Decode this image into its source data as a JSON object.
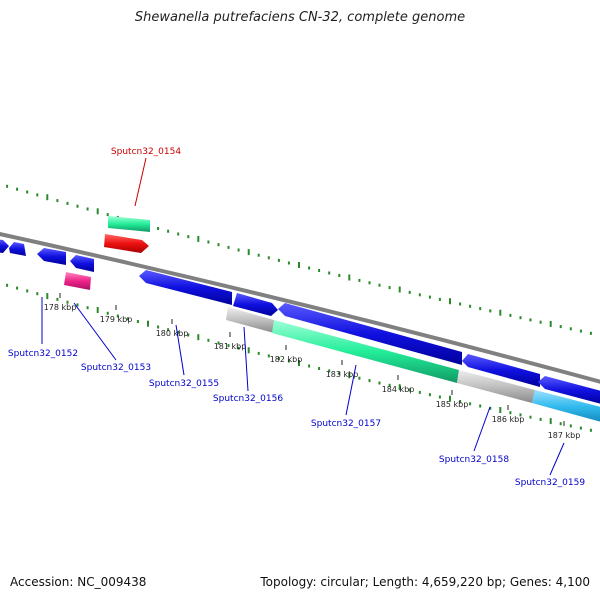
{
  "header": {
    "title": "Shewanella putrefaciens CN-32, complete genome"
  },
  "footer": {
    "accession_text": "Accession: NC_009438",
    "summary_text": "Topology: circular; Length: 4,659,220 bp; Genes: 4,100"
  },
  "scale": {
    "tick_labels": [
      "178 kbp",
      "179 kbp",
      "180 kbp",
      "181 kbp",
      "182 kbp",
      "183 kbp",
      "184 kbp",
      "185 kbp",
      "186 kbp",
      "187 kbp"
    ]
  },
  "genes": [
    {
      "label": "Sputcn32_0152",
      "color": "#0000cc"
    },
    {
      "label": "Sputcn32_0153",
      "color": "#0000cc"
    },
    {
      "label": "Sputcn32_0154",
      "color": "#cc0000"
    },
    {
      "label": "Sputcn32_0155",
      "color": "#0000cc"
    },
    {
      "label": "Sputcn32_0156",
      "color": "#0000cc"
    },
    {
      "label": "Sputcn32_0157",
      "color": "#0000cc"
    },
    {
      "label": "Sputcn32_0158",
      "color": "#0000cc"
    },
    {
      "label": "Sputcn32_0159",
      "color": "#0000cc"
    }
  ],
  "colors": {
    "backbone": "#808080",
    "cds_forward": "#1010e0",
    "cds_reverse": "#1010e0",
    "feature_red": "#ee1111",
    "feature_teal": "#22ee99",
    "feature_magenta": "#ee2288",
    "feature_grey": "#c0c0c0",
    "feature_cyan": "#33bbee",
    "tick_green": "#2a8a2a"
  }
}
